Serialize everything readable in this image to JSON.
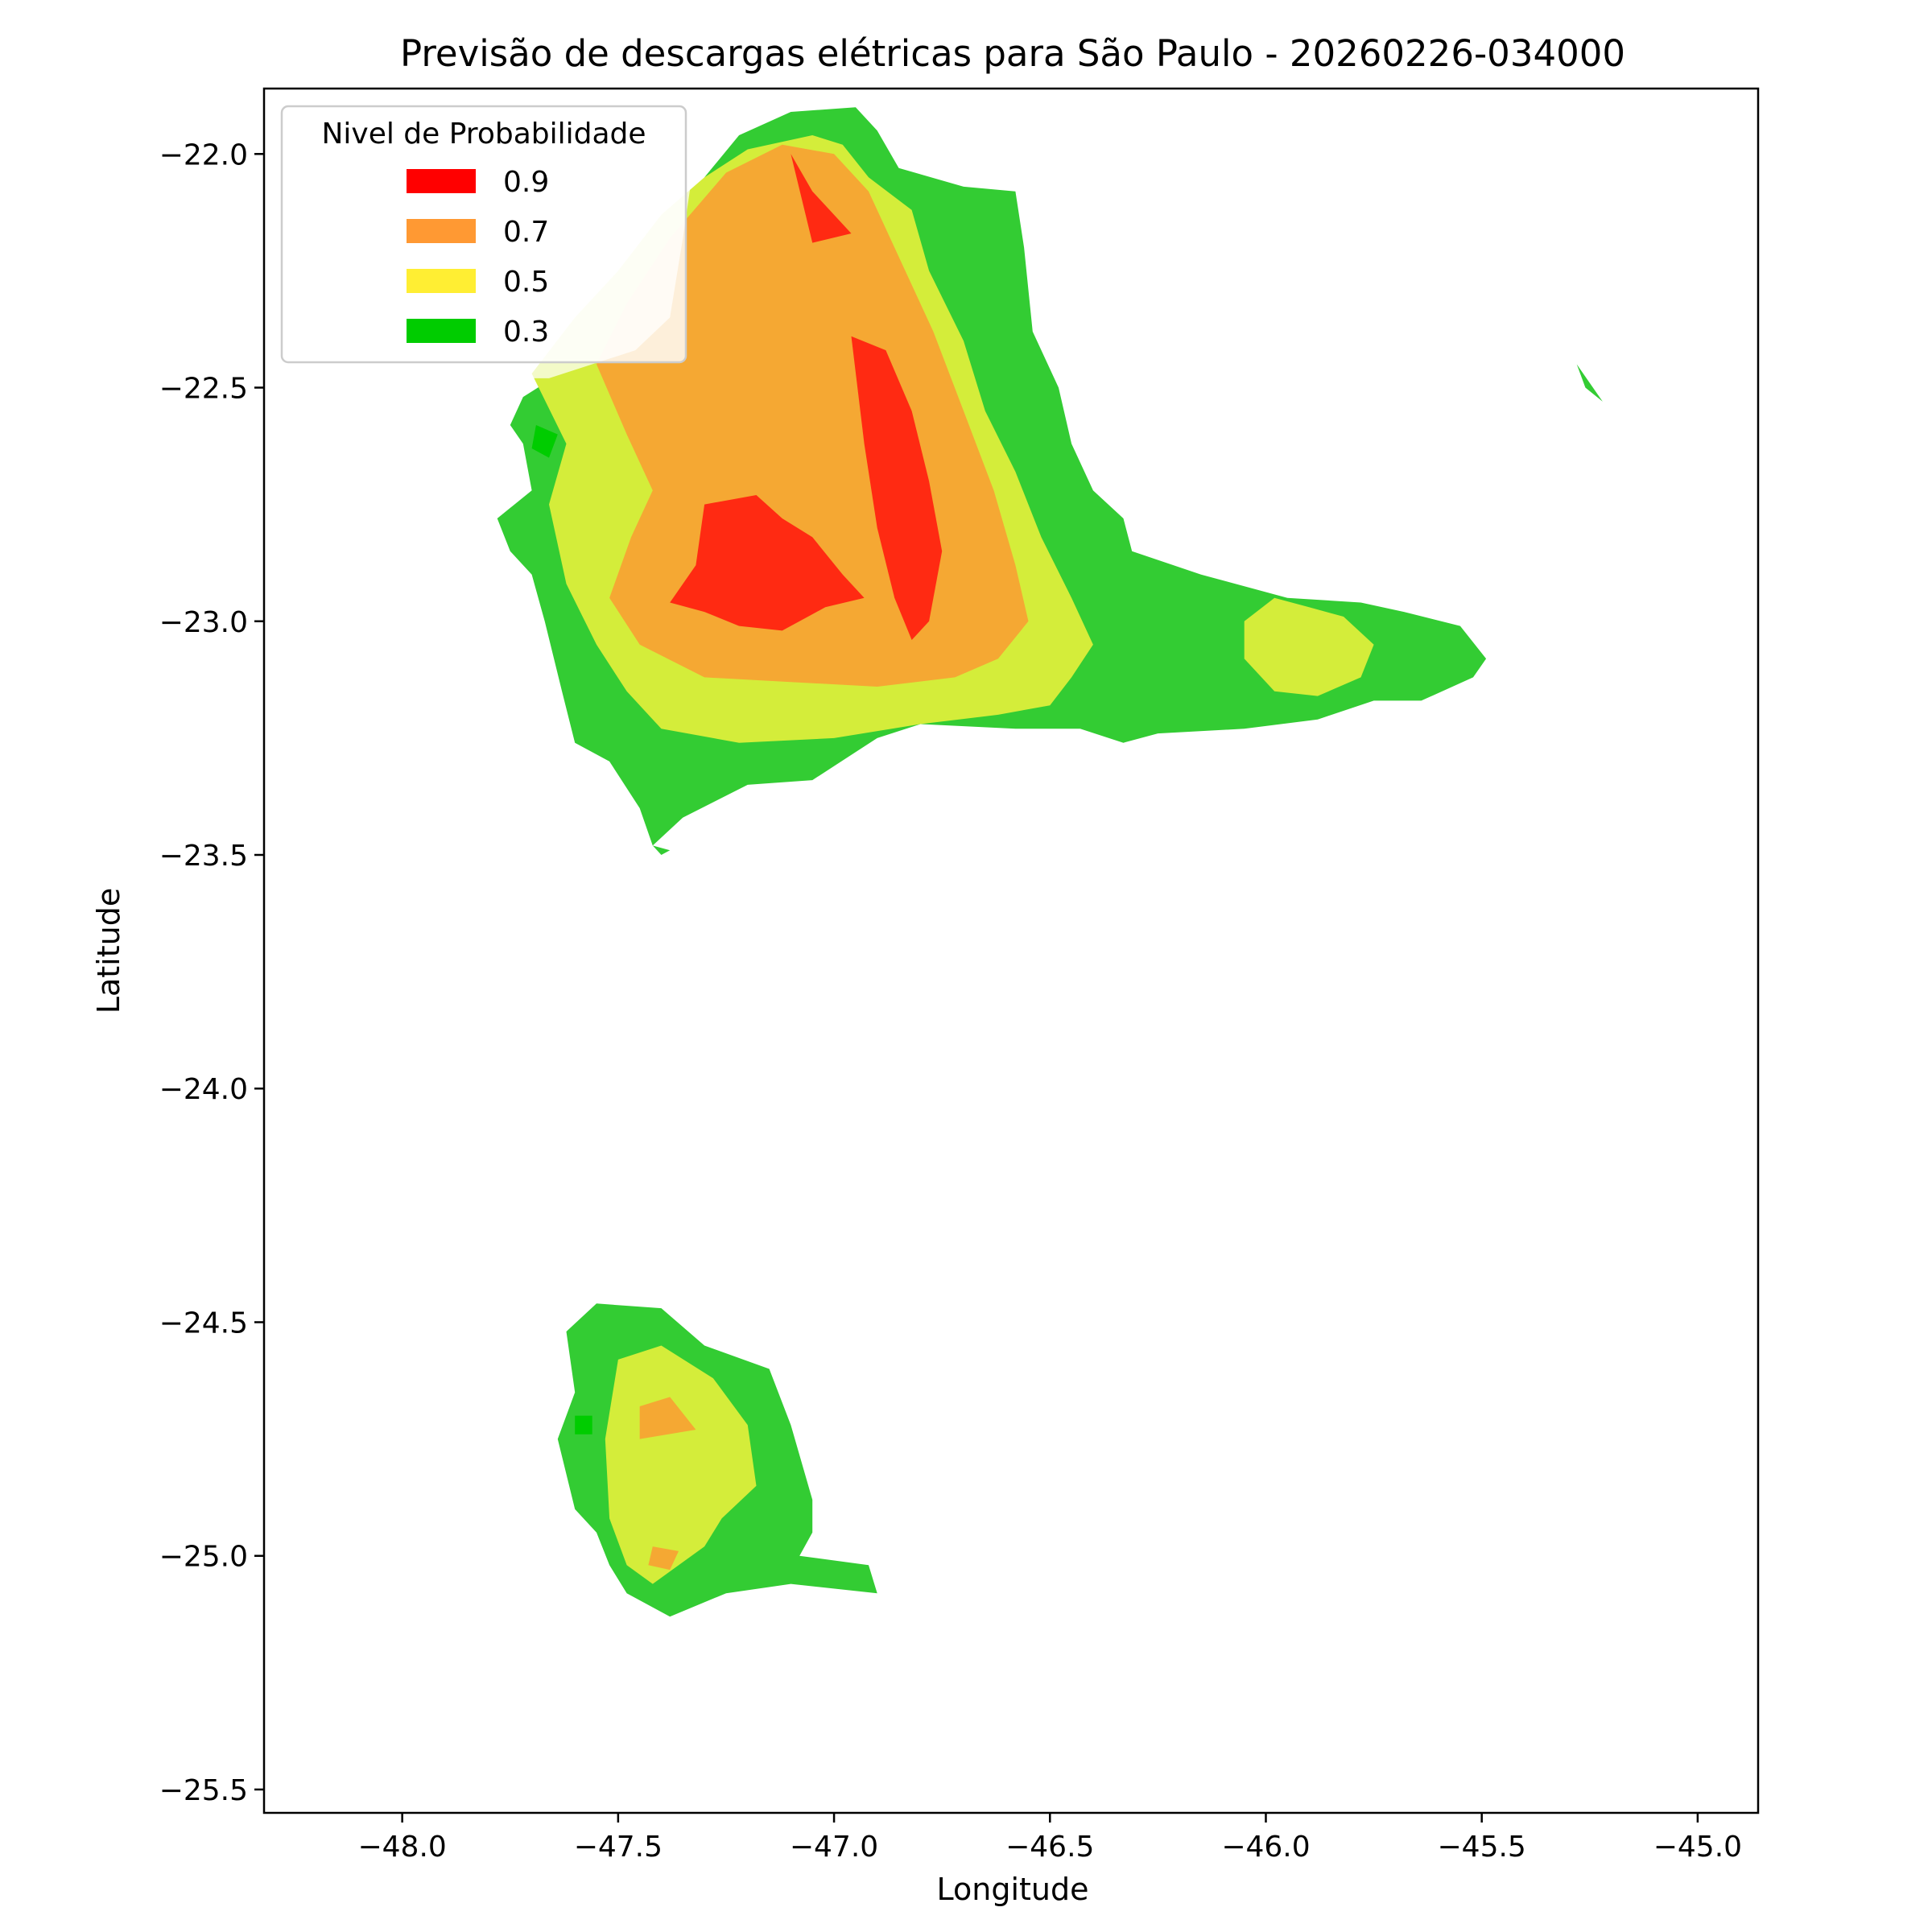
{
  "chart_data": {
    "type": "heatmap",
    "title": "Previsão de descargas elétricas para São Paulo - 20260226-034000",
    "xlabel": "Longitude",
    "ylabel": "Latitude",
    "xlim": [
      -48.32,
      -44.86
    ],
    "ylim": [
      -25.55,
      -21.86
    ],
    "xticks": [
      -48.0,
      -47.5,
      -47.0,
      -46.5,
      -46.0,
      -45.5,
      -45.0
    ],
    "xtick_labels": [
      "−48.0",
      "−47.5",
      "−47.0",
      "−46.5",
      "−46.0",
      "−45.5",
      "−45.0"
    ],
    "yticks": [
      -22.0,
      -22.5,
      -23.0,
      -23.5,
      -24.0,
      -24.5,
      -25.0,
      -25.5
    ],
    "ytick_labels": [
      "−22.0",
      "−22.5",
      "−23.0",
      "−23.5",
      "−24.0",
      "−24.5",
      "−25.0",
      "−25.5"
    ],
    "grid": false,
    "legend": {
      "title": "Nivel de Probabilidade",
      "placement": "upper-left",
      "entries": [
        {
          "label": "0.9",
          "color": "#ff0000"
        },
        {
          "label": "0.7",
          "color": "#ff9933"
        },
        {
          "label": "0.5",
          "color": "#ffee33"
        },
        {
          "label": "0.3",
          "color": "#00cc00"
        }
      ]
    },
    "levels": [
      {
        "level": 0.3,
        "color": "#33cc33",
        "regions": [
          [
            [
              -47.75,
              -22.58
            ],
            [
              -47.72,
              -22.52
            ],
            [
              -47.6,
              -22.45
            ],
            [
              -47.5,
              -22.3
            ],
            [
              -47.4,
              -22.2
            ],
            [
              -47.3,
              -22.05
            ],
            [
              -47.22,
              -21.96
            ],
            [
              -47.1,
              -21.91
            ],
            [
              -46.95,
              -21.9
            ],
            [
              -46.9,
              -21.95
            ],
            [
              -46.85,
              -22.03
            ],
            [
              -46.7,
              -22.07
            ],
            [
              -46.58,
              -22.08
            ],
            [
              -46.56,
              -22.2
            ],
            [
              -46.54,
              -22.38
            ],
            [
              -46.48,
              -22.5
            ],
            [
              -46.45,
              -22.62
            ],
            [
              -46.4,
              -22.72
            ],
            [
              -46.33,
              -22.78
            ],
            [
              -46.31,
              -22.85
            ],
            [
              -46.15,
              -22.9
            ],
            [
              -45.95,
              -22.95
            ],
            [
              -45.78,
              -22.96
            ],
            [
              -45.68,
              -22.98
            ],
            [
              -45.55,
              -23.01
            ],
            [
              -45.49,
              -23.08
            ],
            [
              -45.52,
              -23.12
            ],
            [
              -45.64,
              -23.17
            ],
            [
              -45.75,
              -23.17
            ],
            [
              -45.88,
              -23.21
            ],
            [
              -46.05,
              -23.23
            ],
            [
              -46.25,
              -23.24
            ],
            [
              -46.33,
              -23.26
            ],
            [
              -46.43,
              -23.23
            ],
            [
              -46.58,
              -23.23
            ],
            [
              -46.8,
              -23.22
            ],
            [
              -46.9,
              -23.25
            ],
            [
              -46.95,
              -23.28
            ],
            [
              -47.05,
              -23.34
            ],
            [
              -47.2,
              -23.35
            ],
            [
              -47.35,
              -23.42
            ],
            [
              -47.42,
              -23.48
            ],
            [
              -47.45,
              -23.4
            ],
            [
              -47.52,
              -23.3
            ],
            [
              -47.6,
              -23.26
            ],
            [
              -47.63,
              -23.15
            ],
            [
              -47.67,
              -23.0
            ],
            [
              -47.7,
              -22.9
            ],
            [
              -47.75,
              -22.85
            ],
            [
              -47.78,
              -22.78
            ],
            [
              -47.7,
              -22.72
            ],
            [
              -47.72,
              -22.62
            ]
          ],
          [
            [
              -47.62,
              -24.52
            ],
            [
              -47.55,
              -24.46
            ],
            [
              -47.4,
              -24.47
            ],
            [
              -47.3,
              -24.55
            ],
            [
              -47.15,
              -24.6
            ],
            [
              -47.1,
              -24.72
            ],
            [
              -47.05,
              -24.88
            ],
            [
              -47.05,
              -24.95
            ],
            [
              -47.08,
              -25.0
            ],
            [
              -46.92,
              -25.02
            ],
            [
              -46.9,
              -25.08
            ],
            [
              -47.1,
              -25.06
            ],
            [
              -47.25,
              -25.08
            ],
            [
              -47.38,
              -25.13
            ],
            [
              -47.48,
              -25.08
            ],
            [
              -47.52,
              -25.02
            ],
            [
              -47.55,
              -24.95
            ],
            [
              -47.6,
              -24.9
            ],
            [
              -47.64,
              -24.75
            ],
            [
              -47.6,
              -24.65
            ]
          ],
          [
            [
              -45.28,
              -22.45
            ],
            [
              -45.22,
              -22.53
            ],
            [
              -45.26,
              -22.5
            ]
          ],
          [
            [
              -47.42,
              -23.48
            ],
            [
              -47.4,
              -23.5
            ],
            [
              -47.38,
              -23.49
            ]
          ]
        ]
      },
      {
        "level": 0.5,
        "color": "#d4ed3a",
        "regions": [
          [
            [
              -47.7,
              -22.47
            ],
            [
              -47.6,
              -22.35
            ],
            [
              -47.5,
              -22.25
            ],
            [
              -47.4,
              -22.13
            ],
            [
              -47.3,
              -22.05
            ],
            [
              -47.2,
              -21.99
            ],
            [
              -47.05,
              -21.96
            ],
            [
              -46.98,
              -21.98
            ],
            [
              -46.92,
              -22.05
            ],
            [
              -46.82,
              -22.12
            ],
            [
              -46.78,
              -22.25
            ],
            [
              -46.7,
              -22.4
            ],
            [
              -46.65,
              -22.55
            ],
            [
              -46.58,
              -22.68
            ],
            [
              -46.52,
              -22.82
            ],
            [
              -46.45,
              -22.95
            ],
            [
              -46.4,
              -23.05
            ],
            [
              -46.45,
              -23.12
            ],
            [
              -46.5,
              -23.18
            ],
            [
              -46.62,
              -23.2
            ],
            [
              -46.8,
              -23.22
            ],
            [
              -47.0,
              -23.25
            ],
            [
              -47.22,
              -23.26
            ],
            [
              -47.4,
              -23.23
            ],
            [
              -47.48,
              -23.15
            ],
            [
              -47.55,
              -23.05
            ],
            [
              -47.62,
              -22.92
            ],
            [
              -47.66,
              -22.75
            ],
            [
              -47.62,
              -22.62
            ]
          ],
          [
            [
              -46.05,
              -23.0
            ],
            [
              -45.98,
              -22.95
            ],
            [
              -45.9,
              -22.97
            ],
            [
              -45.82,
              -22.99
            ],
            [
              -45.75,
              -23.05
            ],
            [
              -45.78,
              -23.12
            ],
            [
              -45.88,
              -23.16
            ],
            [
              -45.98,
              -23.15
            ],
            [
              -46.05,
              -23.08
            ]
          ],
          [
            [
              -47.5,
              -24.58
            ],
            [
              -47.4,
              -24.55
            ],
            [
              -47.28,
              -24.62
            ],
            [
              -47.2,
              -24.72
            ],
            [
              -47.18,
              -24.85
            ],
            [
              -47.26,
              -24.92
            ],
            [
              -47.3,
              -24.98
            ],
            [
              -47.42,
              -25.06
            ],
            [
              -47.48,
              -25.02
            ],
            [
              -47.52,
              -24.92
            ],
            [
              -47.53,
              -24.75
            ]
          ]
        ]
      },
      {
        "level": 0.7,
        "color": "#f5a833",
        "regions": [
          [
            [
              -47.55,
              -22.45
            ],
            [
              -47.48,
              -22.32
            ],
            [
              -47.38,
              -22.18
            ],
            [
              -47.25,
              -22.04
            ],
            [
              -47.12,
              -21.98
            ],
            [
              -47.0,
              -22.0
            ],
            [
              -46.92,
              -22.08
            ],
            [
              -46.85,
              -22.22
            ],
            [
              -46.77,
              -22.38
            ],
            [
              -46.7,
              -22.55
            ],
            [
              -46.63,
              -22.72
            ],
            [
              -46.58,
              -22.88
            ],
            [
              -46.55,
              -23.0
            ],
            [
              -46.62,
              -23.08
            ],
            [
              -46.72,
              -23.12
            ],
            [
              -46.9,
              -23.14
            ],
            [
              -47.1,
              -23.13
            ],
            [
              -47.3,
              -23.12
            ],
            [
              -47.45,
              -23.05
            ],
            [
              -47.52,
              -22.95
            ],
            [
              -47.47,
              -22.82
            ],
            [
              -47.42,
              -22.72
            ],
            [
              -47.48,
              -22.6
            ]
          ],
          [
            [
              -47.45,
              -24.68
            ],
            [
              -47.38,
              -24.66
            ],
            [
              -47.32,
              -24.73
            ],
            [
              -47.45,
              -24.75
            ]
          ],
          [
            [
              -47.42,
              -24.98
            ],
            [
              -47.36,
              -24.99
            ],
            [
              -47.38,
              -25.03
            ],
            [
              -47.43,
              -25.02
            ]
          ]
        ]
      },
      {
        "level": 0.9,
        "color": "#ff2a12",
        "regions": [
          [
            [
              -47.3,
              -22.75
            ],
            [
              -47.18,
              -22.73
            ],
            [
              -47.12,
              -22.78
            ],
            [
              -47.05,
              -22.82
            ],
            [
              -46.98,
              -22.9
            ],
            [
              -46.93,
              -22.95
            ],
            [
              -47.02,
              -22.97
            ],
            [
              -47.12,
              -23.02
            ],
            [
              -47.22,
              -23.01
            ],
            [
              -47.3,
              -22.98
            ],
            [
              -47.38,
              -22.96
            ],
            [
              -47.32,
              -22.88
            ]
          ],
          [
            [
              -46.96,
              -22.39
            ],
            [
              -46.88,
              -22.42
            ],
            [
              -46.82,
              -22.55
            ],
            [
              -46.78,
              -22.7
            ],
            [
              -46.75,
              -22.85
            ],
            [
              -46.78,
              -23.0
            ],
            [
              -46.82,
              -23.04
            ],
            [
              -46.86,
              -22.95
            ],
            [
              -46.9,
              -22.8
            ],
            [
              -46.93,
              -22.62
            ]
          ],
          [
            [
              -47.1,
              -22.0
            ],
            [
              -47.05,
              -22.08
            ],
            [
              -46.96,
              -22.17
            ],
            [
              -47.05,
              -22.19
            ]
          ]
        ]
      },
      {
        "level": 0.3,
        "color": "#00cc00",
        "regions": [
          [
            [
              -47.69,
              -22.58
            ],
            [
              -47.64,
              -22.6
            ],
            [
              -47.66,
              -22.65
            ],
            [
              -47.7,
              -22.63
            ]
          ],
          [
            [
              -47.6,
              -24.7
            ],
            [
              -47.56,
              -24.7
            ],
            [
              -47.56,
              -24.74
            ],
            [
              -47.6,
              -24.74
            ]
          ]
        ]
      }
    ],
    "overlay": {
      "color": "#ffffff",
      "opacity": 0.72,
      "region": [
        [
          -47.9,
          -22.47
        ],
        [
          -47.88,
          -22.35
        ],
        [
          -47.75,
          -22.25
        ],
        [
          -47.62,
          -22.16
        ],
        [
          -47.5,
          -22.12
        ],
        [
          -47.38,
          -22.05
        ],
        [
          -47.32,
          -21.99
        ],
        [
          -47.35,
          -22.18
        ],
        [
          -47.38,
          -22.35
        ],
        [
          -47.46,
          -22.42
        ],
        [
          -47.66,
          -22.48
        ],
        [
          -47.8,
          -22.48
        ]
      ]
    }
  }
}
